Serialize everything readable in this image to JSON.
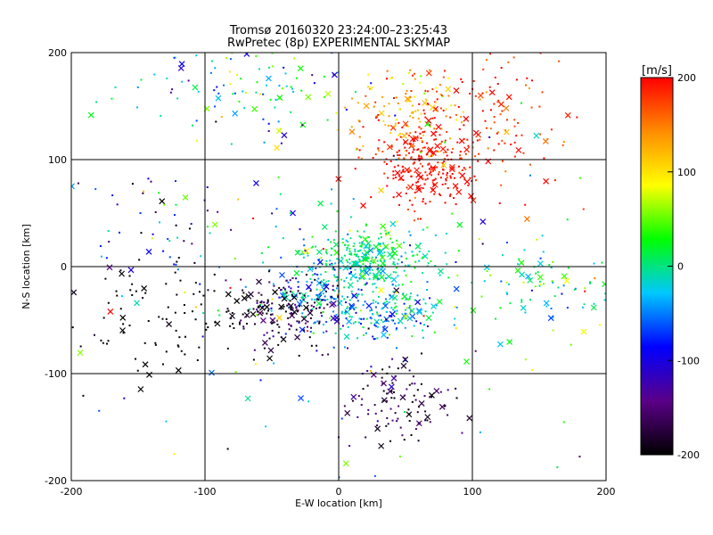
{
  "chart_data": [
    {
      "type": "scatter",
      "title": "Tromsø 20160320 23:24:00–23:25:43",
      "subtitle": "RwPretec (8p) EXPERIMENTAL SKYMAP",
      "xlabel": "E-W location [km]",
      "ylabel": "N-S location [km]",
      "xlim": [
        -200,
        200
      ],
      "ylim": [
        -200,
        200
      ],
      "xticks": [
        "-200",
        "-100",
        "0",
        "100",
        "200"
      ],
      "yticks": [
        "-200",
        "-100",
        "0",
        "100",
        "200"
      ],
      "grid": true,
      "markers": [
        "dot",
        "cross"
      ],
      "colorscale": "rainbow (black-purple-blue-cyan-green-yellow-orange-red)",
      "clusters": [
        {
          "x": 65,
          "y": 95,
          "sx": 18,
          "sy": 22,
          "v": 200,
          "sv": 18,
          "n": 260
        },
        {
          "x": 50,
          "y": 145,
          "sx": 25,
          "sy": 25,
          "v": 130,
          "sv": 35,
          "n": 130
        },
        {
          "x": 115,
          "y": 140,
          "sx": 30,
          "sy": 35,
          "v": 180,
          "sv": 25,
          "n": 120
        },
        {
          "x": 20,
          "y": 10,
          "sx": 25,
          "sy": 12,
          "v": 0,
          "sv": 25,
          "n": 260
        },
        {
          "x": 0,
          "y": -25,
          "sx": 30,
          "sy": 18,
          "v": -40,
          "sv": 45,
          "n": 220
        },
        {
          "x": -40,
          "y": -40,
          "sx": 20,
          "sy": 15,
          "v": -175,
          "sv": 25,
          "n": 150
        },
        {
          "x": 35,
          "y": -45,
          "sx": 22,
          "sy": 12,
          "v": -30,
          "sv": 45,
          "n": 130
        },
        {
          "x": 45,
          "y": -125,
          "sx": 18,
          "sy": 18,
          "v": -170,
          "sv": 30,
          "n": 110
        },
        {
          "x": -120,
          "y": -50,
          "sx": 50,
          "sy": 25,
          "v": -200,
          "sv": 10,
          "n": 110
        },
        {
          "x": -70,
          "y": 165,
          "sx": 45,
          "sy": 20,
          "v": -20,
          "sv": 60,
          "n": 90
        },
        {
          "x": 155,
          "y": -20,
          "sx": 30,
          "sy": 20,
          "v": 15,
          "sv": 40,
          "n": 90
        },
        {
          "x": -140,
          "y": 40,
          "sx": 30,
          "sy": 35,
          "v": -100,
          "sv": 80,
          "n": 50
        },
        {
          "x": 0,
          "y": 0,
          "sx": 115,
          "sy": 115,
          "v": 0,
          "sv": 110,
          "n": 180
        }
      ]
    },
    {
      "type": "colorbar",
      "label": "[m/s]",
      "range": [
        -200,
        200
      ],
      "ticks": [
        "200",
        "100",
        "0",
        "-100",
        "-200"
      ],
      "colors": [
        "#000000",
        "#5a0088",
        "#0000ff",
        "#00c8ff",
        "#00ff00",
        "#ffff00",
        "#ff8c00",
        "#ff0000"
      ]
    }
  ]
}
